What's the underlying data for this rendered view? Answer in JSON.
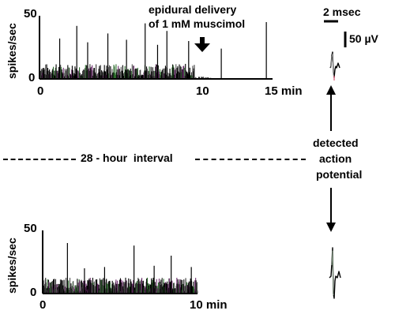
{
  "chart_data": [
    {
      "type": "bar",
      "panel": "top",
      "ylabel": "spikes/sec",
      "ylim": [
        0,
        50
      ],
      "y_ticks": [
        "0",
        "50"
      ],
      "x_ticks": [
        "0",
        "10",
        "15 min"
      ],
      "x_range_min": [
        0,
        15
      ],
      "annotation": {
        "lines": [
          "epidural delivery",
          "of 1 mM muscimol"
        ],
        "at_min": 10
      },
      "spikes": [
        {
          "t": 1.3,
          "v": 32
        },
        {
          "t": 2.4,
          "v": 42
        },
        {
          "t": 3.1,
          "v": 29
        },
        {
          "t": 4.4,
          "v": 36
        },
        {
          "t": 5.6,
          "v": 31
        },
        {
          "t": 6.8,
          "v": 44
        },
        {
          "t": 7.6,
          "v": 27
        },
        {
          "t": 8.2,
          "v": 38
        },
        {
          "t": 9.6,
          "v": 30
        },
        {
          "t": 11.7,
          "v": 24
        },
        {
          "t": 14.6,
          "v": 45
        }
      ],
      "baseline_range": [
        5,
        15
      ]
    },
    {
      "type": "bar",
      "panel": "bottom",
      "ylabel": "spikes/sec",
      "ylim": [
        0,
        50
      ],
      "y_ticks": [
        "0",
        "50"
      ],
      "x_ticks": [
        "0",
        "10 min"
      ],
      "x_range_min": [
        0,
        10
      ],
      "spikes": [
        {
          "t": 1.6,
          "v": 40
        },
        {
          "t": 2.7,
          "v": 20
        },
        {
          "t": 4.0,
          "v": 21
        },
        {
          "t": 5.9,
          "v": 38
        },
        {
          "t": 7.2,
          "v": 22
        },
        {
          "t": 8.3,
          "v": 30
        },
        {
          "t": 9.6,
          "v": 21
        }
      ],
      "baseline_range": [
        4,
        15
      ]
    }
  ],
  "interval_label": "28 - hour  interval",
  "right_panel": {
    "time_scale": "2 msec",
    "voltage_scale": "50 µV",
    "caption_lines": [
      "detected",
      "action",
      "potential"
    ]
  }
}
